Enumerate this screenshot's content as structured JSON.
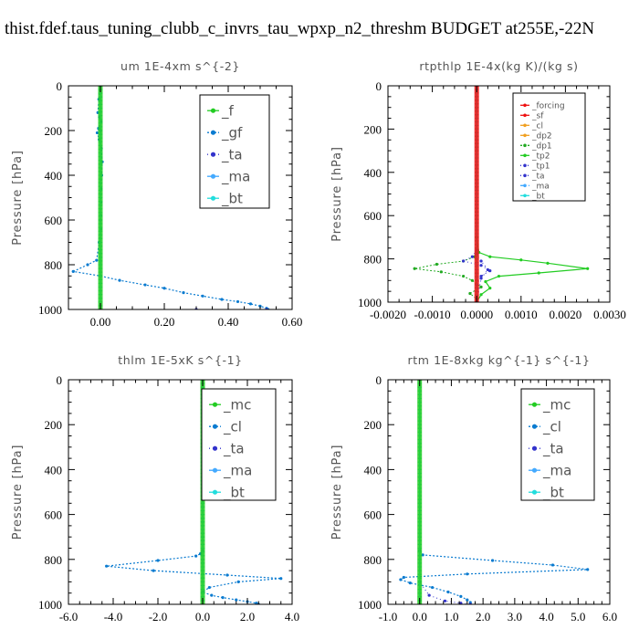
{
  "figure_title": "thist.fdef.taus_tuning_clubb_c_invrs_tau_wpxp_n2_threshm  BUDGET at255E,-22N",
  "colors": {
    "green": "#22cc22",
    "red": "#ee1111",
    "blue_dotted": "#0a7bd0",
    "purple": "#3333cc",
    "cyan": "#22dddd",
    "orange": "#f0a020",
    "dark_green": "#22aa22",
    "light_blue": "#44aaff",
    "frame": "#000000"
  },
  "chart_data": [
    {
      "id": "um",
      "type": "line",
      "title": "um   1E-4xm s^{-2}",
      "ylabel": "Pressure [hPa]",
      "xlabel": "",
      "xlim": [
        -0.1,
        0.6
      ],
      "ylim": [
        1000,
        0
      ],
      "xticks": [
        "0.00",
        "0.20",
        "0.40",
        "0.60"
      ],
      "xtick_values": [
        0.0,
        0.2,
        0.4,
        0.6
      ],
      "yticks": [
        "0",
        "200",
        "400",
        "600",
        "800",
        "1000"
      ],
      "ytick_values": [
        0,
        200,
        400,
        600,
        800,
        1000
      ],
      "legend_position": "top-right",
      "legend": [
        "_f",
        "_gf",
        "_ta",
        "_ma",
        "_bt"
      ],
      "series": [
        {
          "name": "_f",
          "style": "green",
          "x": [
            0,
            0,
            0,
            0,
            0,
            0,
            0,
            0,
            0,
            0,
            0,
            0,
            0,
            0,
            0,
            0,
            0,
            0,
            0,
            0,
            0
          ],
          "y": [
            0,
            50,
            100,
            150,
            200,
            250,
            300,
            350,
            400,
            450,
            500,
            550,
            600,
            650,
            700,
            750,
            800,
            850,
            900,
            950,
            1000
          ]
        },
        {
          "name": "_gf",
          "style": "blue_dotted",
          "x": [
            0,
            -0.005,
            -0.008,
            -0.003,
            0.002,
            -0.006,
            -0.01,
            -0.004,
            0.003,
            0.006,
            0.004,
            0.002,
            0.002,
            0.001,
            0.001,
            -0.004,
            -0.012,
            -0.04,
            -0.085,
            0.0,
            0.06,
            0.14,
            0.2,
            0.26,
            0.32,
            0.38,
            0.43,
            0.47,
            0.5,
            0.52,
            0.525
          ],
          "y": [
            0,
            60,
            120,
            140,
            160,
            190,
            210,
            240,
            280,
            340,
            400,
            460,
            520,
            580,
            640,
            700,
            780,
            800,
            830,
            850,
            870,
            890,
            905,
            925,
            940,
            955,
            965,
            975,
            985,
            995,
            1000
          ]
        },
        {
          "name": "_ta",
          "style": "purple",
          "x": [
            0.0,
            0.0,
            0.0,
            0.0,
            0.3,
            0.52
          ],
          "y": [
            0,
            200,
            600,
            1000,
            1000,
            1000
          ]
        },
        {
          "name": "_ma",
          "style": "light_blue",
          "x": [
            0,
            0,
            0,
            0,
            0,
            0
          ],
          "y": [
            0,
            200,
            400,
            600,
            800,
            1000
          ]
        },
        {
          "name": "_bt",
          "style": "cyan",
          "x": [
            0,
            0,
            0,
            0,
            0,
            0
          ],
          "y": [
            0,
            200,
            400,
            600,
            800,
            1000
          ]
        }
      ]
    },
    {
      "id": "rtpthlp",
      "type": "line",
      "title": "rtpthlp   1E-4x(kg K)/(kg s)",
      "ylabel": "Pressure [hPa]",
      "xlabel": "",
      "xlim": [
        -0.002,
        0.003
      ],
      "ylim": [
        1000,
        0
      ],
      "xticks": [
        "-0.0020",
        "-0.0010",
        "0.0000",
        "0.0010",
        "0.0020",
        "0.0030"
      ],
      "xtick_values": [
        -0.002,
        -0.001,
        0.0,
        0.001,
        0.002,
        0.003
      ],
      "yticks": [
        "0",
        "200",
        "400",
        "600",
        "800",
        "1000"
      ],
      "ytick_values": [
        0,
        200,
        400,
        600,
        800,
        1000
      ],
      "legend_position": "top-right",
      "legend": [
        "_forcing",
        "_sf",
        "_cl",
        "_dp2",
        "_dp1",
        "_tp2",
        "_tp1",
        "_ta",
        "_ma",
        "_bt"
      ],
      "series": [
        {
          "name": "_forcing",
          "style": "red",
          "x": [
            0,
            0,
            0,
            0,
            0,
            0,
            0,
            0,
            0,
            0,
            0
          ],
          "y": [
            0,
            100,
            200,
            300,
            400,
            500,
            600,
            700,
            800,
            900,
            1000
          ]
        },
        {
          "name": "_sf",
          "style": "red",
          "x": [
            0,
            0,
            0,
            0,
            0,
            0
          ],
          "y": [
            0,
            200,
            400,
            600,
            800,
            1000
          ]
        },
        {
          "name": "_cl",
          "style": "orange",
          "x": [
            0,
            0,
            0,
            0,
            0,
            0
          ],
          "y": [
            0,
            200,
            400,
            600,
            800,
            1000
          ]
        },
        {
          "name": "_dp2",
          "style": "orange",
          "x": [
            0,
            0,
            0,
            0,
            0,
            0
          ],
          "y": [
            0,
            200,
            400,
            600,
            800,
            1000
          ]
        },
        {
          "name": "_dp1",
          "style": "dark_green",
          "x": [
            0,
            0,
            0,
            -5e-05,
            -0.0003,
            -0.0009,
            -0.0014,
            -0.0008,
            -0.0003,
            -0.0001,
            0.0001,
            -0.00015,
            0.0,
            0.0
          ],
          "y": [
            0,
            700,
            770,
            790,
            810,
            825,
            845,
            860,
            880,
            900,
            930,
            960,
            985,
            1000
          ]
        },
        {
          "name": "_tp2",
          "style": "green",
          "x": [
            0,
            0,
            5e-05,
            0.0003,
            0.001,
            0.0016,
            0.0025,
            0.0014,
            0.0005,
            0.0002,
            0.0003,
            0.0001,
            0.0
          ],
          "y": [
            0,
            700,
            770,
            790,
            805,
            820,
            845,
            865,
            880,
            905,
            935,
            965,
            1000
          ]
        },
        {
          "name": "_tp1",
          "style": "purple",
          "x": [
            0,
            0,
            -0.0001,
            -0.0003,
            0.0001,
            0.0003,
            0.0001,
            0.0,
            0.0
          ],
          "y": [
            0,
            760,
            790,
            810,
            830,
            855,
            880,
            920,
            1000
          ]
        },
        {
          "name": "_ta",
          "style": "purple",
          "x": [
            0,
            0,
            0.0001,
            0.00025,
            0.0001,
            0.0
          ],
          "y": [
            0,
            780,
            810,
            850,
            890,
            1000
          ]
        },
        {
          "name": "_ma",
          "style": "light_blue",
          "x": [
            0,
            0,
            0,
            0,
            0,
            0
          ],
          "y": [
            0,
            200,
            400,
            600,
            800,
            1000
          ]
        },
        {
          "name": "_bt",
          "style": "cyan",
          "x": [
            0,
            0,
            0,
            0,
            0,
            0
          ],
          "y": [
            0,
            200,
            400,
            600,
            800,
            1000
          ]
        }
      ]
    },
    {
      "id": "thlm",
      "type": "line",
      "title": "thlm   1E-5xK s^{-1}",
      "ylabel": "Pressure [hPa]",
      "xlabel": "",
      "xlim": [
        -6.0,
        4.0
      ],
      "ylim": [
        1000,
        0
      ],
      "xticks": [
        "-6.0",
        "-4.0",
        "-2.0",
        "0.0",
        "2.0",
        "4.0"
      ],
      "xtick_values": [
        -6.0,
        -4.0,
        -2.0,
        0.0,
        2.0,
        4.0
      ],
      "yticks": [
        "0",
        "200",
        "400",
        "600",
        "800",
        "1000"
      ],
      "ytick_values": [
        0,
        200,
        400,
        600,
        800,
        1000
      ],
      "legend_position": "top-right",
      "legend": [
        "_mc",
        "_cl",
        "_ta",
        "_ma",
        "_bt"
      ],
      "series": [
        {
          "name": "_mc",
          "style": "green",
          "x": [
            0,
            0,
            0,
            0,
            0,
            0,
            0,
            0,
            0,
            0,
            0,
            0,
            0,
            0,
            0,
            0,
            0,
            0,
            0,
            0,
            0
          ],
          "y": [
            0,
            50,
            100,
            150,
            200,
            250,
            300,
            350,
            400,
            450,
            500,
            550,
            600,
            650,
            700,
            750,
            800,
            850,
            900,
            950,
            1000
          ]
        },
        {
          "name": "_cl",
          "style": "blue_dotted",
          "x": [
            0,
            0,
            -0.1,
            -0.3,
            -2.0,
            -4.3,
            -2.2,
            1.1,
            3.5,
            1.6,
            0.3,
            0.0,
            0.4,
            0.9,
            1.5,
            2.0,
            2.4,
            2.5
          ],
          "y": [
            0,
            760,
            775,
            785,
            805,
            830,
            850,
            870,
            885,
            900,
            925,
            945,
            960,
            970,
            980,
            988,
            995,
            1000
          ]
        },
        {
          "name": "_ta",
          "style": "purple",
          "x": [
            0,
            0,
            0,
            0,
            0,
            0
          ],
          "y": [
            0,
            200,
            400,
            600,
            800,
            1000
          ]
        },
        {
          "name": "_ma",
          "style": "light_blue",
          "x": [
            0,
            0,
            0,
            0,
            0,
            0
          ],
          "y": [
            0,
            200,
            400,
            600,
            800,
            1000
          ]
        },
        {
          "name": "_bt",
          "style": "cyan",
          "x": [
            0,
            0,
            0,
            0,
            0,
            0
          ],
          "y": [
            0,
            200,
            400,
            600,
            800,
            1000
          ]
        }
      ]
    },
    {
      "id": "rtm",
      "type": "line",
      "title": "rtm   1E-8xkg kg^{-1} s^{-1}",
      "ylabel": "Pressure [hPa]",
      "xlabel": "",
      "xlim": [
        -1.0,
        6.0
      ],
      "ylim": [
        1000,
        0
      ],
      "xticks": [
        "-1.0",
        "0.0",
        "1.0",
        "2.0",
        "3.0",
        "4.0",
        "5.0",
        "6.0"
      ],
      "xtick_values": [
        -1.0,
        0.0,
        1.0,
        2.0,
        3.0,
        4.0,
        5.0,
        6.0
      ],
      "yticks": [
        "0",
        "200",
        "400",
        "600",
        "800",
        "1000"
      ],
      "ytick_values": [
        0,
        200,
        400,
        600,
        800,
        1000
      ],
      "legend_position": "top-right",
      "legend": [
        "_mc",
        "_cl",
        "_ta",
        "_ma",
        "_bt"
      ],
      "series": [
        {
          "name": "_mc",
          "style": "green",
          "x": [
            0,
            0,
            0,
            0,
            0,
            0,
            0,
            0,
            0,
            0,
            0,
            0,
            0,
            0,
            0,
            0,
            0,
            0,
            0,
            0,
            0
          ],
          "y": [
            0,
            50,
            100,
            150,
            200,
            250,
            300,
            350,
            400,
            450,
            500,
            550,
            600,
            650,
            700,
            750,
            800,
            850,
            900,
            950,
            1000
          ]
        },
        {
          "name": "_cl",
          "style": "blue_dotted",
          "x": [
            0,
            0,
            0.1,
            2.3,
            4.2,
            5.3,
            1.5,
            -0.5,
            -0.6,
            -0.3,
            0.4,
            0.9,
            1.3,
            1.5,
            1.6,
            1.6
          ],
          "y": [
            0,
            760,
            780,
            805,
            825,
            845,
            865,
            880,
            890,
            905,
            925,
            945,
            965,
            980,
            992,
            1000
          ]
        },
        {
          "name": "_ta",
          "style": "purple",
          "x": [
            0,
            0,
            0.3,
            0.8,
            1.3,
            1.6
          ],
          "y": [
            0,
            900,
            960,
            985,
            995,
            1000
          ]
        },
        {
          "name": "_ma",
          "style": "light_blue",
          "x": [
            0,
            0,
            0,
            0,
            0,
            0
          ],
          "y": [
            0,
            200,
            400,
            600,
            800,
            1000
          ]
        },
        {
          "name": "_bt",
          "style": "cyan",
          "x": [
            0,
            0,
            0,
            0,
            0,
            0
          ],
          "y": [
            0,
            200,
            400,
            600,
            800,
            1000
          ]
        }
      ]
    }
  ]
}
